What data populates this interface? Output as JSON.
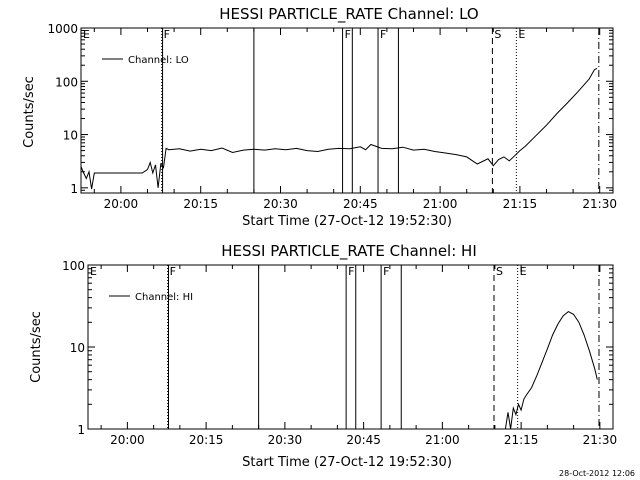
{
  "stamp": "28-Oct-2012 12:06",
  "chart_data": [
    {
      "type": "line",
      "title": "HESSI PARTICLE_RATE Channel: LO",
      "xlabel": "Start Time (27-Oct-12 19:52:30)",
      "ylabel": "Counts/sec",
      "y_scale": "log",
      "xlim": [
        "19:52:30",
        "21:32:30"
      ],
      "ylim": [
        0.8,
        1000
      ],
      "x_ticks": [
        "20:00",
        "20:15",
        "20:30",
        "20:45",
        "21:00",
        "21:15",
        "21:30"
      ],
      "y_ticks": [
        "1",
        "10",
        "100",
        "1000"
      ],
      "legend": {
        "position": "top-left",
        "entries": [
          "Channel: LO"
        ]
      },
      "grid": false,
      "series": [
        {
          "name": "Channel: LO",
          "x": [
            "19:52:30",
            "19:53:00",
            "19:53:30",
            "19:54:00",
            "19:54:30",
            "19:55:00",
            "19:56:00",
            "19:58:00",
            "20:00:00",
            "20:02:00",
            "20:04:00",
            "20:05:00",
            "20:05:30",
            "20:06:00",
            "20:06:30",
            "20:07:00",
            "20:07:30",
            "20:08:00",
            "20:08:30",
            "20:09:00",
            "20:11:00",
            "20:13:00",
            "20:15:00",
            "20:17:00",
            "20:19:00",
            "20:21:00",
            "20:23:00",
            "20:25:00",
            "20:27:00",
            "20:29:00",
            "20:31:00",
            "20:33:00",
            "20:35:00",
            "20:37:00",
            "20:39:00",
            "20:41:00",
            "20:43:00",
            "20:45:00",
            "20:46:00",
            "20:47:00",
            "20:49:00",
            "20:51:00",
            "20:53:00",
            "20:55:00",
            "20:57:00",
            "20:59:00",
            "21:01:00",
            "21:03:00",
            "21:05:00",
            "21:07:00",
            "21:09:00",
            "21:10:00",
            "21:11:00",
            "21:12:00",
            "21:13:00",
            "21:14:00",
            "21:15:00",
            "21:16:00",
            "21:18:00",
            "21:20:00",
            "21:22:00",
            "21:24:00",
            "21:26:00",
            "21:28:00",
            "21:29:00",
            "21:29:30"
          ],
          "y": [
            2.5,
            1.9,
            1.5,
            2.0,
            0.95,
            1.9,
            1.9,
            1.9,
            1.9,
            1.9,
            1.9,
            2.2,
            3.0,
            1.9,
            2.7,
            1.0,
            2.8,
            2.4,
            5.5,
            5.2,
            5.4,
            4.9,
            5.3,
            5.0,
            5.6,
            4.6,
            5.1,
            5.3,
            5.1,
            5.4,
            5.2,
            5.5,
            5.0,
            4.8,
            5.3,
            5.5,
            5.4,
            5.9,
            5.2,
            6.5,
            5.5,
            5.4,
            5.8,
            5.1,
            5.3,
            4.8,
            4.5,
            4.2,
            3.8,
            2.8,
            3.5,
            2.6,
            3.4,
            3.8,
            3.2,
            4.0,
            5.0,
            6.0,
            9.5,
            15,
            25,
            40,
            65,
            110,
            165,
            175
          ]
        }
      ],
      "events": [
        {
          "label": "E",
          "time": "19:52:30",
          "style": "solid"
        },
        {
          "label": "F",
          "time": "20:07:40",
          "style": "dotted"
        },
        {
          "label": "",
          "time": "20:07:50",
          "style": "solid"
        },
        {
          "label": "",
          "time": "20:25:00",
          "style": "solid"
        },
        {
          "label": "F",
          "time": "20:41:40",
          "style": "solid"
        },
        {
          "label": "",
          "time": "20:43:30",
          "style": "solid"
        },
        {
          "label": "F",
          "time": "20:48:20",
          "style": "solid"
        },
        {
          "label": "",
          "time": "20:52:10",
          "style": "solid"
        },
        {
          "label": "S",
          "time": "21:09:50",
          "style": "dashed"
        },
        {
          "label": "E",
          "time": "21:14:20",
          "style": "dotted"
        },
        {
          "label": "",
          "time": "21:29:50",
          "style": "dashdot"
        }
      ]
    },
    {
      "type": "line",
      "title": "HESSI PARTICLE_RATE Channel: HI",
      "xlabel": "Start Time (27-Oct-12 19:52:30)",
      "ylabel": "Counts/sec",
      "y_scale": "log",
      "xlim": [
        "19:52:30",
        "21:32:30"
      ],
      "ylim": [
        1,
        100
      ],
      "x_ticks": [
        "20:00",
        "20:15",
        "20:30",
        "20:45",
        "21:00",
        "21:15",
        "21:30"
      ],
      "y_ticks": [
        "1",
        "10",
        "100"
      ],
      "legend": {
        "position": "top-left",
        "entries": [
          "Channel: HI"
        ]
      },
      "grid": false,
      "series": [
        {
          "name": "Channel: HI",
          "x": [
            "21:12:00",
            "21:12:30",
            "21:13:00",
            "21:13:30",
            "21:14:00",
            "21:14:30",
            "21:15:00",
            "21:15:30",
            "21:16:00",
            "21:17:00",
            "21:18:00",
            "21:19:00",
            "21:20:00",
            "21:21:00",
            "21:22:00",
            "21:23:00",
            "21:24:00",
            "21:25:00",
            "21:26:00",
            "21:27:00",
            "21:28:00",
            "21:29:00",
            "21:29:30"
          ],
          "y": [
            1.0,
            1.6,
            1.0,
            1.8,
            1.5,
            2.0,
            1.7,
            2.3,
            2.6,
            3.2,
            4.5,
            6.5,
            9.5,
            14,
            19,
            24,
            27,
            25,
            20,
            14,
            9,
            5.5,
            4.0
          ]
        }
      ],
      "events": [
        {
          "label": "E",
          "time": "19:52:30",
          "style": "solid"
        },
        {
          "label": "F",
          "time": "20:07:40",
          "style": "dotted"
        },
        {
          "label": "",
          "time": "20:07:50",
          "style": "solid"
        },
        {
          "label": "",
          "time": "20:25:00",
          "style": "solid"
        },
        {
          "label": "F",
          "time": "20:41:40",
          "style": "solid"
        },
        {
          "label": "",
          "time": "20:43:30",
          "style": "solid"
        },
        {
          "label": "F",
          "time": "20:48:20",
          "style": "solid"
        },
        {
          "label": "",
          "time": "20:52:10",
          "style": "solid"
        },
        {
          "label": "S",
          "time": "21:09:50",
          "style": "dashed"
        },
        {
          "label": "E",
          "time": "21:14:20",
          "style": "dotted"
        },
        {
          "label": "",
          "time": "21:29:50",
          "style": "dashdot"
        }
      ]
    }
  ]
}
